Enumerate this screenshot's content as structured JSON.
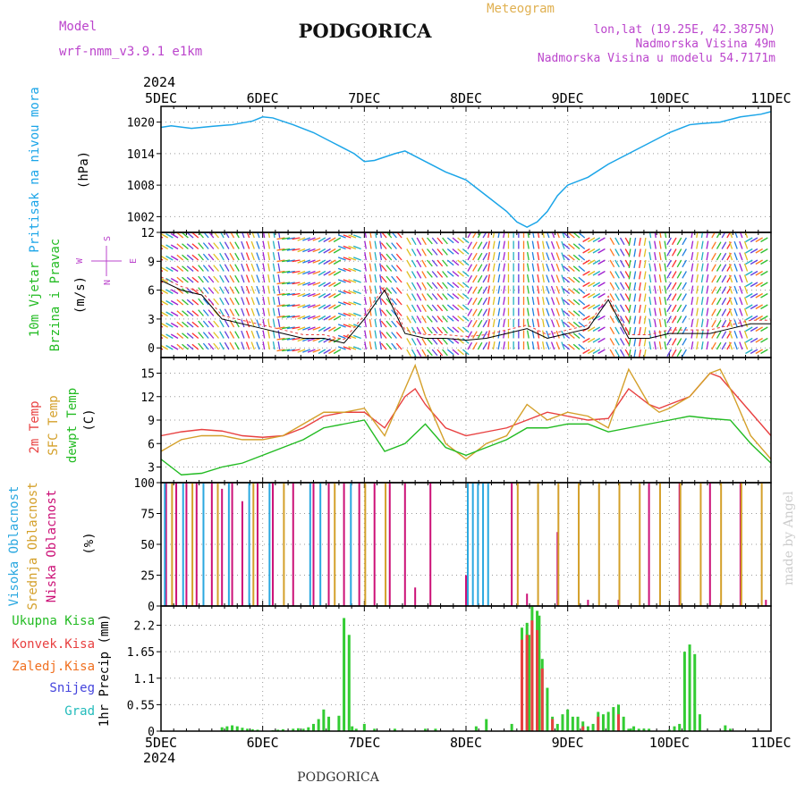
{
  "header": {
    "model_label": "Model",
    "model_name": "wrf-nmm_v3.9.1 e1km",
    "city": "PODGORICA",
    "meteogram": "Meteogram",
    "lonlat": "lon,lat (19.25E, 42.3875N)",
    "elevation": "Nadmorska Visina 49m",
    "model_elevation": "Nadmorska Visina u modelu 54.7171m",
    "year": "2024",
    "footer_city": "PODGORICA",
    "watermark": "made by Angel"
  },
  "colors": {
    "pressure": "#1ba5e8",
    "wind_label": "#22bb22",
    "temp_2m": "#e84040",
    "temp_sfc": "#d4a02a",
    "dewpoint": "#22bb22",
    "cloud_high": "#2aa8e0",
    "cloud_mid": "#d4a02a",
    "cloud_low": "#cc1177",
    "precip_total": "#33cc33",
    "precip_conv": "#e84040",
    "precip_strat": "#f07020",
    "snow": "#4444dd",
    "hail": "#22bbbb",
    "magenta": "#bb44cc"
  },
  "chart_data": [
    {
      "type": "line",
      "panel": "pressure",
      "ylabel": [
        "Pritisak na nivou mora",
        "(hPa)"
      ],
      "x_ticks": [
        "5DEC",
        "6DEC",
        "7DEC",
        "8DEC",
        "9DEC",
        "10DEC",
        "11DEC"
      ],
      "x_range_days": [
        0,
        6
      ],
      "yticks": [
        1002,
        1008,
        1014,
        1020
      ],
      "ylim": [
        999,
        1023
      ],
      "series": [
        {
          "x": [
            0,
            0.1,
            0.3,
            0.5,
            0.7,
            0.9,
            1.0,
            1.1,
            1.3,
            1.5,
            1.7,
            1.9,
            2.0,
            2.1,
            2.3,
            2.4,
            2.6,
            2.8,
            3.0,
            3.2,
            3.4,
            3.5,
            3.6,
            3.7,
            3.8,
            3.9,
            4.0,
            4.2,
            4.4,
            4.6,
            4.8,
            5.0,
            5.2,
            5.3,
            5.5,
            5.7,
            5.9,
            6.0
          ],
          "values": [
            1019,
            1019.3,
            1018.8,
            1019.2,
            1019.5,
            1020.2,
            1021,
            1020.8,
            1019.5,
            1018,
            1016,
            1014,
            1012.5,
            1012.7,
            1014,
            1014.5,
            1012.5,
            1010.5,
            1009,
            1006,
            1003,
            1001,
            1000,
            1001,
            1003,
            1006,
            1008,
            1009.5,
            1012,
            1014,
            1016,
            1018,
            1019.5,
            1019.7,
            1020,
            1021,
            1021.5,
            1022
          ]
        }
      ],
      "grid": true
    },
    {
      "type": "line",
      "panel": "wind",
      "ylabel": [
        "10m Vjetar",
        "Brzina i Pravac",
        "(m/s)"
      ],
      "compass": [
        "N",
        "S",
        "W",
        "E"
      ],
      "yticks": [
        0,
        3,
        6,
        9,
        12
      ],
      "ylim": [
        -1,
        12
      ],
      "series": [
        {
          "name": "speed",
          "x": [
            0,
            0.2,
            0.4,
            0.6,
            0.8,
            1.0,
            1.2,
            1.4,
            1.6,
            1.8,
            2.0,
            2.2,
            2.4,
            2.6,
            2.8,
            3.0,
            3.2,
            3.4,
            3.6,
            3.8,
            4.0,
            4.2,
            4.4,
            4.6,
            4.8,
            5.0,
            5.2,
            5.4,
            5.6,
            5.8,
            6.0
          ],
          "values": [
            7,
            6,
            5.5,
            3,
            2.5,
            2,
            1.5,
            1,
            1,
            0.5,
            3,
            6,
            1.5,
            1,
            1,
            0.8,
            1,
            1.5,
            2,
            1,
            1.5,
            2,
            5,
            1,
            1,
            1.5,
            1.5,
            1.5,
            2,
            2.5,
            2.5
          ]
        }
      ],
      "grid": true
    },
    {
      "type": "line",
      "panel": "temperature",
      "ylabel": [
        "2m Temp",
        "SFC Temp",
        "dewpt Temp",
        "(C)"
      ],
      "yticks": [
        3,
        6,
        9,
        12,
        15
      ],
      "ylim": [
        1,
        17
      ],
      "series": [
        {
          "name": "2m Temp",
          "x": [
            0,
            0.2,
            0.4,
            0.6,
            0.8,
            1.0,
            1.2,
            1.4,
            1.6,
            1.8,
            2.0,
            2.2,
            2.4,
            2.5,
            2.6,
            2.8,
            3.0,
            3.2,
            3.4,
            3.6,
            3.8,
            4.0,
            4.2,
            4.4,
            4.6,
            4.8,
            4.9,
            5.0,
            5.2,
            5.4,
            5.5,
            5.6,
            5.8,
            6.0
          ],
          "values": [
            7,
            7.5,
            7.8,
            7.6,
            7,
            6.8,
            7,
            8,
            9.5,
            10,
            10,
            8,
            12,
            13,
            11,
            8,
            7,
            7.5,
            8,
            9,
            10,
            9.5,
            9,
            9.2,
            13,
            11,
            10.5,
            11,
            12,
            15,
            14.5,
            13,
            10,
            7
          ]
        },
        {
          "name": "SFC Temp",
          "x": [
            0,
            0.2,
            0.4,
            0.6,
            0.8,
            1.0,
            1.2,
            1.4,
            1.6,
            1.8,
            2.0,
            2.2,
            2.4,
            2.5,
            2.6,
            2.8,
            3.0,
            3.2,
            3.4,
            3.6,
            3.8,
            4.0,
            4.2,
            4.4,
            4.6,
            4.8,
            4.9,
            5.0,
            5.2,
            5.4,
            5.5,
            5.6,
            5.8,
            6.0
          ],
          "values": [
            5,
            6.5,
            7,
            7,
            6.5,
            6.5,
            7,
            8.5,
            10,
            10,
            10.5,
            7,
            13,
            16,
            12,
            6,
            4,
            6,
            7,
            11,
            9,
            10,
            9.5,
            8,
            15.5,
            11,
            10,
            10.5,
            12,
            15,
            15.5,
            13,
            7,
            4
          ]
        },
        {
          "name": "dewpt Temp",
          "x": [
            0,
            0.2,
            0.4,
            0.6,
            0.8,
            1.0,
            1.2,
            1.4,
            1.6,
            1.8,
            2.0,
            2.2,
            2.4,
            2.6,
            2.8,
            3.0,
            3.2,
            3.4,
            3.6,
            3.8,
            4.0,
            4.2,
            4.4,
            4.6,
            4.8,
            5.0,
            5.2,
            5.4,
            5.6,
            5.8,
            6.0
          ],
          "values": [
            4,
            2,
            2.2,
            3,
            3.5,
            4.5,
            5.5,
            6.5,
            8,
            8.5,
            9,
            5,
            6,
            8.5,
            5.5,
            4.5,
            5.5,
            6.5,
            8,
            8,
            8.5,
            8.5,
            7.5,
            8,
            8.5,
            9,
            9.5,
            9.2,
            9,
            6,
            3.5
          ]
        }
      ],
      "grid": true
    },
    {
      "type": "bar",
      "panel": "clouds",
      "ylabel": [
        "Visoka Oblacnost",
        "Srednja Oblacnost",
        "Niska Oblacnost",
        "(%)"
      ],
      "yticks": [
        0,
        25,
        50,
        75,
        100
      ],
      "ylim": [
        0,
        100
      ],
      "series": [
        {
          "name": "Niska Oblacnost",
          "x": [
            0.05,
            0.15,
            0.25,
            0.35,
            0.5,
            0.6,
            0.7,
            0.8,
            0.95,
            1.1,
            1.3,
            1.5,
            1.65,
            1.8,
            1.95,
            2.1,
            2.25,
            2.4,
            2.5,
            2.65,
            3.0,
            3.45,
            3.6,
            3.9,
            4.2,
            4.5,
            4.8,
            5.1,
            5.4,
            5.7,
            5.95
          ],
          "values": [
            100,
            100,
            100,
            100,
            100,
            95,
            100,
            85,
            100,
            100,
            100,
            100,
            100,
            100,
            100,
            100,
            100,
            100,
            15,
            100,
            25,
            100,
            10,
            60,
            5,
            5,
            100,
            100,
            100,
            100,
            5
          ]
        },
        {
          "name": "Srednja Oblacnost",
          "x": [
            0.1,
            0.3,
            0.55,
            0.9,
            1.2,
            1.7,
            2.0,
            2.2,
            3.5,
            3.7,
            3.9,
            4.1,
            4.3,
            4.5,
            4.7,
            4.9,
            5.1,
            5.3,
            5.5,
            5.7,
            5.9
          ],
          "values": [
            100,
            100,
            100,
            100,
            100,
            100,
            100,
            100,
            100,
            100,
            100,
            100,
            100,
            100,
            100,
            100,
            100,
            100,
            100,
            100,
            100
          ]
        },
        {
          "name": "Visoka Oblacnost",
          "x": [
            0.02,
            0.2,
            0.4,
            0.65,
            0.85,
            1.05,
            1.45,
            1.55,
            1.85,
            3.0,
            3.05,
            3.1,
            3.15,
            3.2
          ],
          "values": [
            100,
            100,
            100,
            100,
            100,
            100,
            100,
            100,
            100,
            100,
            100,
            100,
            100,
            100
          ]
        }
      ],
      "grid": true
    },
    {
      "type": "bar",
      "panel": "precipitation",
      "ylabel": [
        "1hr Precip (mm)"
      ],
      "legend": [
        "Ukupna Kisa",
        "Konvek.Kisa",
        "Zaledj.Kisa",
        "Snijeg",
        "Grad"
      ],
      "yticks": [
        0,
        0.55,
        1.1,
        1.65,
        2.2
      ],
      "yticklabels": [
        "0",
        "0.55",
        "1.1",
        "1.65",
        "2.2"
      ],
      "ylim": [
        0,
        2.6
      ],
      "series": [
        {
          "name": "Ukupna Kisa",
          "x": [
            0.6,
            0.65,
            0.7,
            0.75,
            0.8,
            0.85,
            0.9,
            0.95,
            1.1,
            1.15,
            1.2,
            1.3,
            1.35,
            1.4,
            1.45,
            1.5,
            1.55,
            1.6,
            1.65,
            1.75,
            1.8,
            1.85,
            1.88,
            1.92,
            2.0,
            2.1,
            2.3,
            2.6,
            2.7,
            3.1,
            3.2,
            3.45,
            3.55,
            3.6,
            3.62,
            3.65,
            3.7,
            3.72,
            3.75,
            3.8,
            3.85,
            3.9,
            3.95,
            4.0,
            4.05,
            4.1,
            4.15,
            4.2,
            4.25,
            4.3,
            4.35,
            4.4,
            4.45,
            4.5,
            4.55,
            4.6,
            4.62,
            4.65,
            4.7,
            4.75,
            4.8,
            5.0,
            5.05,
            5.1,
            5.15,
            5.2,
            5.25,
            5.3,
            5.55,
            5.6
          ],
          "values": [
            0.08,
            0.1,
            0.12,
            0.1,
            0.07,
            0.05,
            0.04,
            0.03,
            0.02,
            0.03,
            0.04,
            0.05,
            0.06,
            0.05,
            0.08,
            0.15,
            0.25,
            0.45,
            0.3,
            0.32,
            2.35,
            2.0,
            0.1,
            0.05,
            0.15,
            0.05,
            0.05,
            0.05,
            0.05,
            0.1,
            0.25,
            0.15,
            2.15,
            2.25,
            2.0,
            2.6,
            2.5,
            2.4,
            1.5,
            0.9,
            0.3,
            0.15,
            0.35,
            0.45,
            0.3,
            0.3,
            0.2,
            0.1,
            0.15,
            0.4,
            0.35,
            0.4,
            0.5,
            0.55,
            0.3,
            0.05,
            0.05,
            0.1,
            0.05,
            0.05,
            0.05,
            0.03,
            0.1,
            0.15,
            1.65,
            1.8,
            1.6,
            0.35,
            0.12,
            0.05
          ]
        },
        {
          "name": "Konvek.Kisa",
          "x": [
            3.55,
            3.6,
            3.65,
            3.7,
            3.75,
            3.85,
            4.15,
            4.3,
            4.5
          ],
          "values": [
            1.9,
            2.0,
            2.3,
            2.1,
            1.3,
            0.25,
            0.1,
            0.3,
            0.35
          ]
        }
      ],
      "grid": true
    }
  ]
}
